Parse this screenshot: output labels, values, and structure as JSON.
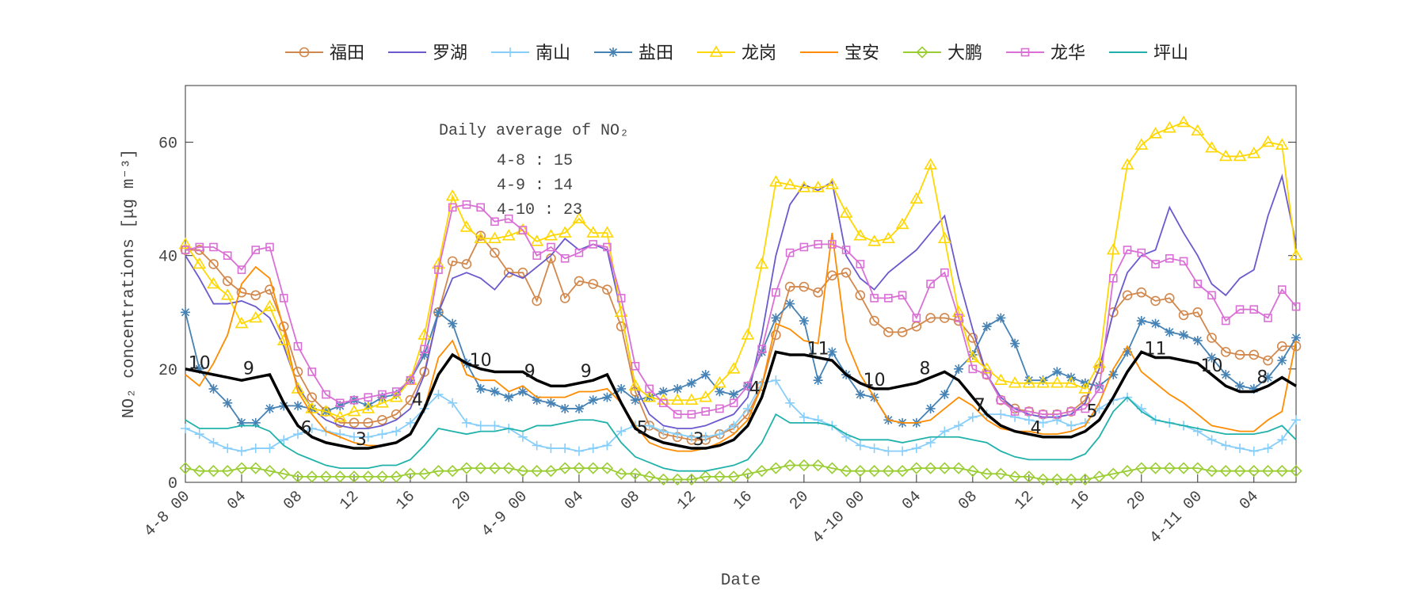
{
  "chart_data": {
    "type": "line",
    "x_label": "Date",
    "y_label": "NO₂ concentrations [μg m⁻³]",
    "annotation": {
      "title": "Daily average of NO₂",
      "lines": [
        "4-8 : 15",
        "4-9 : 14",
        "4-10 : 23"
      ]
    },
    "xlim": [
      0,
      79
    ],
    "ylim": [
      0,
      70
    ],
    "yticks": [
      0,
      20,
      40,
      60
    ],
    "xticks": [
      {
        "value": 0,
        "label": "4-8 00"
      },
      {
        "value": 4,
        "label": "04"
      },
      {
        "value": 8,
        "label": "08"
      },
      {
        "value": 12,
        "label": "12"
      },
      {
        "value": 16,
        "label": "16"
      },
      {
        "value": 20,
        "label": "20"
      },
      {
        "value": 24,
        "label": "4-9 00"
      },
      {
        "value": 28,
        "label": "04"
      },
      {
        "value": 32,
        "label": "08"
      },
      {
        "value": 36,
        "label": "12"
      },
      {
        "value": 40,
        "label": "16"
      },
      {
        "value": 44,
        "label": "20"
      },
      {
        "value": 48,
        "label": "4-10 00"
      },
      {
        "value": 52,
        "label": "04"
      },
      {
        "value": 56,
        "label": "08"
      },
      {
        "value": 60,
        "label": "12"
      },
      {
        "value": 64,
        "label": "16"
      },
      {
        "value": 68,
        "label": "20"
      },
      {
        "value": 72,
        "label": "4-11 00"
      },
      {
        "value": 76,
        "label": "04"
      }
    ],
    "x": [
      0,
      1,
      2,
      3,
      4,
      5,
      6,
      7,
      8,
      9,
      10,
      11,
      12,
      13,
      14,
      15,
      16,
      17,
      18,
      19,
      20,
      21,
      22,
      23,
      24,
      25,
      26,
      27,
      28,
      29,
      30,
      31,
      32,
      33,
      34,
      35,
      36,
      37,
      38,
      39,
      40,
      41,
      42,
      43,
      44,
      45,
      46,
      47,
      48,
      49,
      50,
      51,
      52,
      53,
      54,
      55,
      56,
      57,
      58,
      59,
      60,
      61,
      62,
      63,
      64,
      65,
      66,
      67,
      68,
      69,
      70,
      71,
      72,
      73,
      74,
      75,
      76,
      77,
      78,
      79
    ],
    "legend": "top",
    "series": [
      {
        "name": "福田",
        "color": "#d2884c",
        "marker": "circle",
        "values": [
          41,
          41,
          38.5,
          35.5,
          33.5,
          33,
          34,
          27.5,
          19.5,
          15,
          12.5,
          10.5,
          10.5,
          10.5,
          11,
          12,
          14.5,
          19.5,
          30,
          39,
          38.5,
          43.5,
          40.5,
          37,
          37,
          32,
          39.5,
          32.5,
          35.5,
          35,
          34,
          27.5,
          16,
          10,
          8.5,
          8,
          7.5,
          7.5,
          8.5,
          9.5,
          12,
          17,
          26,
          34.5,
          34.5,
          33.5,
          36.5,
          37,
          33,
          28.5,
          26.5,
          26.5,
          27.5,
          29,
          29,
          28.5,
          25.5,
          19,
          14.5,
          13,
          12.5,
          12,
          12,
          12.5,
          14.5,
          20,
          30,
          33,
          33.5,
          32,
          32.5,
          29.5,
          30,
          25.5,
          23,
          22.5,
          22.5,
          21.5,
          24,
          24
        ]
      },
      {
        "name": "罗湖",
        "color": "#6a5acd",
        "marker": "none",
        "values": [
          40,
          36,
          31.5,
          31.5,
          32,
          31,
          29,
          24,
          17,
          13,
          11,
          10,
          9.5,
          9.5,
          10,
          11,
          13,
          19,
          30,
          36,
          37,
          36,
          34,
          37,
          36,
          38,
          40,
          43,
          41,
          42,
          41,
          30,
          17,
          12,
          10,
          9.5,
          9.5,
          10,
          11,
          12,
          15,
          26,
          40,
          49,
          52.5,
          51.5,
          53,
          40,
          36,
          34,
          37,
          39,
          41,
          44,
          47,
          36,
          27,
          19,
          15,
          13,
          12,
          11.5,
          11.5,
          12,
          14,
          20,
          30,
          37,
          40,
          41,
          48.5,
          44,
          40,
          35,
          33,
          36,
          37.5,
          47,
          54,
          42
        ]
      },
      {
        "name": "南山",
        "color": "#87cefa",
        "marker": "plus",
        "values": [
          9.5,
          8.5,
          7,
          6,
          5.5,
          6,
          6,
          7.5,
          8.5,
          9.5,
          9,
          8.5,
          8,
          8,
          8.5,
          9,
          10.5,
          13,
          15.5,
          14,
          10.5,
          10,
          10,
          9.5,
          8,
          6.5,
          6,
          6,
          5.5,
          6,
          6.5,
          9,
          10,
          10,
          9,
          8.5,
          8,
          8,
          8.5,
          10,
          13,
          17.5,
          18,
          14,
          11.5,
          11,
          10,
          8,
          6.5,
          6,
          5.5,
          5.5,
          6,
          7,
          9,
          10,
          11.5,
          12,
          12,
          11.5,
          11,
          10.5,
          11,
          10,
          10.5,
          13,
          14.5,
          15,
          13,
          11,
          10.5,
          10,
          9,
          7.5,
          6.5,
          6,
          5.5,
          6,
          7.5,
          11
        ]
      },
      {
        "name": "盐田",
        "color": "#4682b4",
        "marker": "asterisk",
        "values": [
          30,
          20,
          16.5,
          14,
          10.5,
          10.5,
          13,
          13.5,
          13.5,
          13,
          12.5,
          13.5,
          14.5,
          13.5,
          15,
          15.5,
          18,
          22.5,
          30,
          28,
          21,
          16.5,
          16,
          15,
          16,
          14.5,
          14,
          13,
          13,
          14.5,
          15,
          16.5,
          14.5,
          15,
          16,
          16.5,
          17.5,
          19,
          16,
          15.5,
          17,
          23,
          29,
          31.5,
          28.5,
          18,
          23,
          19,
          15.5,
          15,
          11,
          10.5,
          10.5,
          13,
          15.5,
          20,
          22.5,
          27.5,
          29,
          24.5,
          18,
          18,
          19.5,
          18.5,
          17.5,
          17,
          19,
          23,
          28.5,
          28,
          26.5,
          26,
          25,
          22,
          19,
          17,
          16.5,
          18.5,
          21.5,
          25.5
        ]
      },
      {
        "name": "龙岗",
        "color": "#ffd700",
        "marker": "triangle",
        "values": [
          42,
          38.5,
          35,
          33,
          28,
          29,
          31,
          25,
          16.5,
          13,
          12.5,
          11.5,
          12.5,
          13,
          14,
          15,
          18,
          26,
          38.5,
          50.5,
          45,
          43,
          43,
          43.5,
          44.5,
          42.5,
          43.5,
          44,
          46.5,
          44,
          44,
          30,
          17,
          15,
          14.5,
          14.5,
          14.5,
          15,
          17.5,
          20,
          26,
          38.5,
          53,
          52.5,
          52,
          52,
          52.5,
          47.5,
          43.5,
          42.5,
          43,
          45.5,
          50,
          56,
          43,
          30,
          22,
          20,
          18,
          17.5,
          17.5,
          17.5,
          17.5,
          17.5,
          16.5,
          21,
          41,
          56,
          59.5,
          61.5,
          62.5,
          63.5,
          62,
          59,
          57.5,
          57.5,
          58,
          60,
          59.5,
          40
        ]
      },
      {
        "name": "宝安",
        "color": "#ff8c00",
        "marker": "none",
        "values": [
          19,
          17,
          21,
          26,
          35,
          38,
          36,
          27,
          16,
          12,
          9,
          8,
          7,
          6.5,
          6.5,
          7,
          8.5,
          13,
          22,
          25,
          19,
          18,
          18,
          16,
          17,
          15,
          15,
          15,
          16,
          16,
          16.5,
          14,
          10,
          7,
          6,
          5.5,
          5.5,
          6,
          7,
          8.5,
          11,
          17,
          28,
          27,
          25,
          24.5,
          44,
          25,
          19,
          15,
          11,
          10.5,
          10.5,
          11,
          13,
          15,
          13.5,
          11,
          9.5,
          9,
          9,
          8.5,
          8.5,
          9,
          10,
          14,
          20,
          24,
          19.5,
          17.5,
          15.5,
          14,
          12,
          10,
          9.5,
          9,
          9,
          11,
          12.5,
          25
        ]
      },
      {
        "name": "大鹏",
        "color": "#9acd32",
        "marker": "diamond",
        "values": [
          2.5,
          2,
          2,
          2,
          2.5,
          2.5,
          2,
          1.5,
          1,
          1,
          1,
          1,
          1,
          1,
          1,
          1,
          1.5,
          1.5,
          2,
          2,
          2.5,
          2.5,
          2.5,
          2.5,
          2,
          2,
          2,
          2.5,
          2.5,
          2.5,
          2.5,
          1.5,
          1.5,
          1,
          0.5,
          0.5,
          0.5,
          1,
          1,
          1,
          1.5,
          2,
          2.5,
          3,
          3,
          3,
          2.5,
          2,
          2,
          2,
          2,
          2,
          2.5,
          2.5,
          2.5,
          2.5,
          2,
          1.5,
          1.5,
          1,
          1,
          0.5,
          0.5,
          0.5,
          0.5,
          1,
          1.5,
          2,
          2.5,
          2.5,
          2.5,
          2.5,
          2.5,
          2,
          2,
          2,
          2,
          2,
          2,
          2
        ]
      },
      {
        "name": "龙华",
        "color": "#da70d6",
        "marker": "square",
        "values": [
          41,
          41.5,
          41.5,
          40,
          37.5,
          41,
          41.5,
          32.5,
          24,
          19.5,
          15.5,
          14,
          14.5,
          15,
          15.5,
          16,
          18,
          23.5,
          37.5,
          48.5,
          49,
          48.5,
          46,
          46.5,
          44.5,
          40,
          41.5,
          39.5,
          40.5,
          42,
          41.5,
          32.5,
          20.5,
          16.5,
          14,
          12,
          12,
          12.5,
          13,
          14,
          17,
          23.5,
          33.5,
          40.5,
          41.5,
          42,
          42,
          41,
          38.5,
          32.5,
          32.5,
          33,
          29,
          35,
          37,
          29,
          20,
          19,
          14.5,
          12.5,
          12.5,
          12,
          12,
          12.5,
          13,
          16.5,
          36,
          41,
          40.5,
          38.5,
          39.5,
          39,
          35,
          33,
          28.5,
          30.5,
          30.5,
          29,
          34,
          31
        ]
      },
      {
        "name": "坪山",
        "color": "#20b2aa",
        "marker": "none",
        "values": [
          11,
          9.5,
          9.5,
          9.5,
          10,
          10,
          9,
          6.5,
          5,
          4,
          3,
          2.5,
          2.5,
          2.5,
          3,
          3,
          4,
          6.5,
          9.5,
          9,
          8.5,
          9,
          9,
          9.5,
          9,
          10,
          10,
          10.5,
          11,
          11,
          10.5,
          7,
          4.5,
          3.5,
          2.5,
          2,
          2,
          2,
          2.5,
          3,
          4,
          7,
          12,
          10.5,
          10.5,
          10.5,
          10,
          8.5,
          7.5,
          7.5,
          7.5,
          7,
          7.5,
          8,
          8,
          8,
          7.5,
          7,
          5.5,
          4.5,
          4,
          4,
          4,
          4,
          5,
          8,
          12.5,
          15,
          12.5,
          11,
          10.5,
          10,
          9.5,
          9,
          8.5,
          8.5,
          8.5,
          9,
          10,
          7.5
        ]
      }
    ],
    "average": {
      "color": "#000000",
      "values": [
        20,
        19.5,
        19,
        18.5,
        18,
        18.5,
        19,
        14,
        10,
        8,
        7,
        6.5,
        6,
        6,
        6.5,
        7,
        8.5,
        13,
        19,
        22.5,
        21,
        20,
        19.5,
        19.5,
        19.5,
        18,
        17,
        17,
        17.5,
        18,
        19,
        14,
        9.5,
        8,
        7,
        6.5,
        6,
        6,
        6.5,
        7.5,
        10,
        15,
        23,
        22.5,
        22.5,
        22,
        21.5,
        19,
        17.5,
        16.5,
        16.5,
        17,
        17.5,
        18.5,
        19.5,
        18,
        15,
        12,
        10,
        9,
        8.5,
        8,
        8,
        8,
        9,
        11,
        15,
        19.5,
        23,
        22,
        22,
        21.5,
        21,
        19,
        17,
        16,
        16,
        17,
        18.5,
        17
      ]
    },
    "window_labels": [
      {
        "x": 1,
        "value": 10
      },
      {
        "x": 4.5,
        "value": 9
      },
      {
        "x": 8.6,
        "value": 6
      },
      {
        "x": 12.5,
        "value": 3
      },
      {
        "x": 16.5,
        "value": 4
      },
      {
        "x": 21,
        "value": 10
      },
      {
        "x": 24.5,
        "value": 9
      },
      {
        "x": 28.5,
        "value": 9
      },
      {
        "x": 32.5,
        "value": 5
      },
      {
        "x": 36.5,
        "value": 3
      },
      {
        "x": 40.5,
        "value": 4
      },
      {
        "x": 45,
        "value": 11
      },
      {
        "x": 49,
        "value": 10
      },
      {
        "x": 52.6,
        "value": 8
      },
      {
        "x": 56.5,
        "value": 7
      },
      {
        "x": 60.5,
        "value": 4
      },
      {
        "x": 64.5,
        "value": 5
      },
      {
        "x": 69,
        "value": 11
      },
      {
        "x": 73,
        "value": 10
      },
      {
        "x": 76.6,
        "value": 8
      }
    ]
  }
}
